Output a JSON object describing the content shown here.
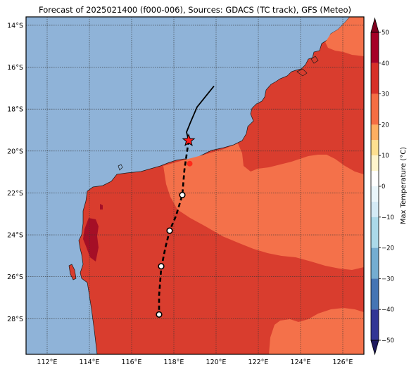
{
  "title": "Forecast of 2025021400 (f000-006), Sources: GDACS (TC track), GFS (Meteo)",
  "map": {
    "lon_range": [
      111,
      127
    ],
    "lat_range": [
      -29.7,
      -13.6
    ],
    "lon_ticks": [
      "112°E",
      "114°E",
      "116°E",
      "118°E",
      "120°E",
      "122°E",
      "124°E",
      "126°E"
    ],
    "lat_ticks": [
      "14°S",
      "16°S",
      "18°S",
      "20°S",
      "22°S",
      "24°S",
      "26°S",
      "28°S"
    ],
    "grid": true,
    "colors": {
      "ocean": "#8fb3d8",
      "band_30_40": "#d93d2e",
      "band_20_30": "#f4714a",
      "band_40_50": "#a50f26",
      "track_past": "#000000",
      "current_position": "#ff0000"
    }
  },
  "track": {
    "past": [
      [
        119.9,
        -16.9
      ],
      [
        119.1,
        -17.9
      ],
      [
        118.8,
        -18.6
      ],
      [
        118.6,
        -19.1
      ],
      [
        118.7,
        -19.5
      ]
    ],
    "current": [
      118.7,
      -19.5
    ],
    "next": [
      118.75,
      -20.6
    ],
    "forecast": [
      [
        118.7,
        -19.5
      ],
      [
        118.5,
        -20.9
      ],
      [
        118.4,
        -22.1
      ],
      [
        118.1,
        -23.1
      ],
      [
        117.8,
        -23.8
      ],
      [
        117.6,
        -24.6
      ],
      [
        117.4,
        -25.6
      ],
      [
        117.3,
        -26.9
      ],
      [
        117.3,
        -27.8
      ]
    ],
    "forecast_points": [
      [
        118.4,
        -22.1
      ],
      [
        117.8,
        -23.8
      ],
      [
        117.4,
        -25.5
      ],
      [
        117.3,
        -27.8
      ]
    ]
  },
  "colorbar": {
    "label": "Max Temperature (°C)",
    "ticks": [
      "50",
      "40",
      "30",
      "20",
      "10",
      "0",
      "−10",
      "−20",
      "−30",
      "−40",
      "−50"
    ],
    "levels": [
      {
        "from": 40,
        "to": 50,
        "color": "#a50026"
      },
      {
        "from": 30,
        "to": 40,
        "color": "#d73027"
      },
      {
        "from": 20,
        "to": 30,
        "color": "#f46d43"
      },
      {
        "from": 15,
        "to": 20,
        "color": "#fdae61"
      },
      {
        "from": 10,
        "to": 15,
        "color": "#fee090"
      },
      {
        "from": 5,
        "to": 10,
        "color": "#fff5cc"
      },
      {
        "from": 0,
        "to": 5,
        "color": "#ffffff"
      },
      {
        "from": -5,
        "to": 0,
        "color": "#eaf6fb"
      },
      {
        "from": -10,
        "to": -5,
        "color": "#d4eaf5"
      },
      {
        "from": -20,
        "to": -10,
        "color": "#abd9e9"
      },
      {
        "from": -30,
        "to": -20,
        "color": "#74add1"
      },
      {
        "from": -40,
        "to": -30,
        "color": "#4575b4"
      },
      {
        "from": -50,
        "to": -40,
        "color": "#313695"
      }
    ]
  }
}
